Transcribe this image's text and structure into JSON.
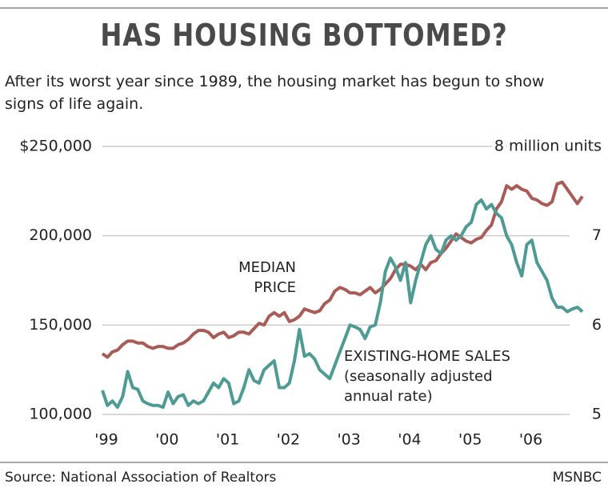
{
  "chart_data": {
    "type": "line",
    "title": "HAS HOUSING BOTTOMED?",
    "subtitle": "After its worst year since 1989, the housing market has begun to show signs of life again.",
    "source": "Source: National Association of Realtors",
    "credit": "MSNBC",
    "annotations": [
      "MEDIAN PRICE",
      "EXISTING-HOME SALES",
      "(seasonally adjusted annual rate)"
    ],
    "categories": [
      "'99",
      null,
      null,
      null,
      null,
      null,
      null,
      null,
      null,
      null,
      null,
      null,
      "'00",
      null,
      null,
      null,
      null,
      null,
      null,
      null,
      null,
      null,
      null,
      null,
      "'01",
      null,
      null,
      null,
      null,
      null,
      null,
      null,
      null,
      null,
      null,
      null,
      "'02",
      null,
      null,
      null,
      null,
      null,
      null,
      null,
      null,
      null,
      null,
      null,
      "'03",
      null,
      null,
      null,
      null,
      null,
      null,
      null,
      null,
      null,
      null,
      null,
      "'04",
      null,
      null,
      null,
      null,
      null,
      null,
      null,
      null,
      null,
      null,
      null,
      "'05",
      null,
      null,
      null,
      null,
      null,
      null,
      null,
      null,
      null,
      null,
      null,
      "'06",
      null,
      null,
      null,
      null,
      null,
      null,
      null,
      null,
      null,
      null,
      null
    ],
    "series": [
      {
        "name": "MEDIAN PRICE",
        "color": "#a85c58",
        "axis": "y",
        "values": [
          134000,
          132000,
          135000,
          136000,
          139000,
          141000,
          141000,
          140000,
          140000,
          138000,
          137000,
          138000,
          138000,
          137000,
          137000,
          139000,
          140000,
          142000,
          145000,
          147000,
          147000,
          146000,
          143000,
          145000,
          146000,
          143000,
          144000,
          146000,
          146000,
          145000,
          148000,
          151000,
          150000,
          155000,
          157000,
          155000,
          157000,
          152000,
          153000,
          155000,
          159000,
          158000,
          157000,
          158000,
          162000,
          164000,
          169000,
          171000,
          170000,
          168000,
          168000,
          167000,
          169000,
          171000,
          168000,
          170000,
          173000,
          176000,
          181000,
          184000,
          184000,
          183000,
          181000,
          184000,
          181000,
          185000,
          186000,
          190000,
          193000,
          197000,
          201000,
          199000,
          197000,
          196000,
          198000,
          199000,
          203000,
          206000,
          215000,
          219000,
          228000,
          226000,
          228000,
          226000,
          225000,
          221000,
          220000,
          218000,
          217000,
          219000,
          229000,
          230000,
          226000,
          222000,
          218000,
          222000
        ]
      },
      {
        "name": "EXISTING-HOME SALES",
        "color": "#4f9a93",
        "axis": "y2",
        "values": [
          5.27,
          5.1,
          5.15,
          5.08,
          5.2,
          5.48,
          5.3,
          5.28,
          5.15,
          5.12,
          5.1,
          5.1,
          5.08,
          5.25,
          5.12,
          5.2,
          5.22,
          5.1,
          5.15,
          5.12,
          5.15,
          5.25,
          5.35,
          5.3,
          5.4,
          5.35,
          5.12,
          5.15,
          5.3,
          5.5,
          5.38,
          5.35,
          5.5,
          5.55,
          5.6,
          5.3,
          5.3,
          5.35,
          5.6,
          5.95,
          5.65,
          5.68,
          5.62,
          5.5,
          5.45,
          5.4,
          5.55,
          5.7,
          5.85,
          6.0,
          5.98,
          5.95,
          5.85,
          5.98,
          6.0,
          6.25,
          6.6,
          6.75,
          6.65,
          6.5,
          6.7,
          6.25,
          6.5,
          6.7,
          6.9,
          7.0,
          6.85,
          6.8,
          6.95,
          7.0,
          6.95,
          7.0,
          7.1,
          7.15,
          7.35,
          7.4,
          7.3,
          7.35,
          7.25,
          7.2,
          7.0,
          6.9,
          6.7,
          6.55,
          6.9,
          6.95,
          6.7,
          6.6,
          6.5,
          6.3,
          6.2,
          6.2,
          6.15,
          6.18,
          6.2,
          6.15
        ]
      }
    ],
    "ylim": [
      100000,
      250000
    ],
    "yticks": [
      {
        "value": 100000,
        "label": "100,000"
      },
      {
        "value": 150000,
        "label": "150,000"
      },
      {
        "value": 200000,
        "label": "200,000"
      },
      {
        "value": 250000,
        "label": "$250,000"
      }
    ],
    "y2lim": [
      5,
      8
    ],
    "y2ticks": [
      5,
      6,
      7,
      {
        "value": 8,
        "label": "8 million units"
      }
    ],
    "grid": true
  }
}
